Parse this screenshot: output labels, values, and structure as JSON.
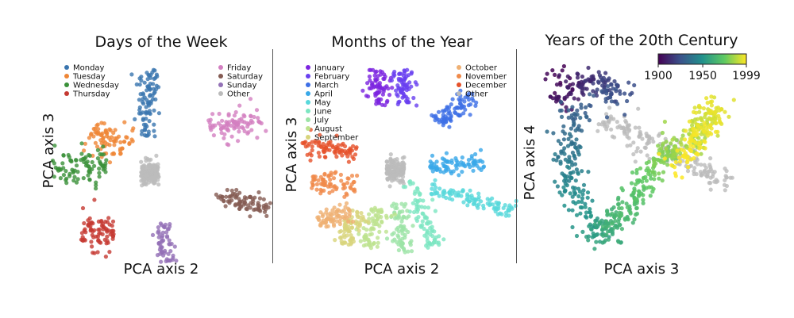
{
  "chart_data": [
    {
      "type": "scatter",
      "title": "Days of the Week",
      "xlabel": "PCA axis 2",
      "ylabel": "PCA axis 3",
      "xlim": [
        -1,
        1
      ],
      "ylim": [
        -1,
        1
      ],
      "grid": false,
      "legend_placement": "top, split in two columns",
      "series": [
        {
          "name": "Monday",
          "color": "#3a75af",
          "cluster": {
            "center": [
              -0.1,
              0.55
            ],
            "direction": [
              0.05,
              1
            ],
            "length": 0.35,
            "width": 0.06,
            "count": 90
          }
        },
        {
          "name": "Tuesday",
          "color": "#ef8636",
          "cluster": {
            "center": [
              -0.45,
              0.2
            ],
            "direction": [
              0.35,
              -0.3
            ],
            "length": 0.18,
            "width": 0.09,
            "count": 80
          }
        },
        {
          "name": "Wednesday",
          "color": "#3b913a",
          "cluster": {
            "center": [
              -0.7,
              -0.1
            ],
            "direction": [
              1,
              0.05
            ],
            "length": 0.25,
            "width": 0.09,
            "count": 90
          }
        },
        {
          "name": "Thursday",
          "color": "#c53932",
          "cluster": {
            "center": [
              -0.55,
              -0.75
            ],
            "direction": [
              1,
              0
            ],
            "length": 0.15,
            "width": 0.1,
            "count": 80
          }
        },
        {
          "name": "Friday",
          "color": "#d37fc1",
          "cluster": {
            "center": [
              0.7,
              0.35
            ],
            "direction": [
              0.8,
              0.25
            ],
            "length": 0.25,
            "width": 0.07,
            "count": 90
          }
        },
        {
          "name": "Saturday",
          "color": "#845b53",
          "cluster": {
            "center": [
              0.75,
              -0.45
            ],
            "direction": [
              1,
              -0.3
            ],
            "length": 0.25,
            "width": 0.05,
            "count": 80
          }
        },
        {
          "name": "Sunday",
          "color": "#9371b6",
          "cluster": {
            "center": [
              0.05,
              -0.85
            ],
            "direction": [
              0.15,
              -1
            ],
            "length": 0.2,
            "width": 0.04,
            "count": 60
          }
        },
        {
          "name": "Other",
          "color": "#bbbbbb",
          "cluster": {
            "center": [
              -0.08,
              -0.15
            ],
            "direction": [
              1,
              0
            ],
            "length": 0.08,
            "width": 0.06,
            "count": 140
          }
        }
      ]
    },
    {
      "type": "scatter",
      "title": "Months of the Year",
      "xlabel": "PCA axis 2",
      "ylabel": "PCA axis 3",
      "xlim": [
        -1,
        1
      ],
      "ylim": [
        -1,
        1
      ],
      "grid": false,
      "legend_placement": "top, split in two columns",
      "series": [
        {
          "name": "January",
          "color": "#7c24e0",
          "cluster": {
            "center": [
              -0.2,
              0.72
            ],
            "direction": [
              0.1,
              1
            ],
            "length": 0.18,
            "width": 0.05,
            "count": 70
          }
        },
        {
          "name": "February",
          "color": "#6940f0",
          "cluster": {
            "center": [
              0.02,
              0.72
            ],
            "direction": [
              0.05,
              1
            ],
            "length": 0.18,
            "width": 0.05,
            "count": 70
          }
        },
        {
          "name": "March",
          "color": "#3d6fe6",
          "cluster": {
            "center": [
              0.5,
              0.5
            ],
            "direction": [
              0.6,
              0.5
            ],
            "length": 0.22,
            "width": 0.05,
            "count": 80
          }
        },
        {
          "name": "April",
          "color": "#38a8e8",
          "cluster": {
            "center": [
              0.5,
              -0.05
            ],
            "direction": [
              1,
              0.05
            ],
            "length": 0.25,
            "width": 0.05,
            "count": 80
          }
        },
        {
          "name": "May",
          "color": "#58d8db",
          "cluster": {
            "center": [
              0.65,
              -0.42
            ],
            "direction": [
              1,
              -0.3
            ],
            "length": 0.4,
            "width": 0.04,
            "count": 100
          }
        },
        {
          "name": "June",
          "color": "#7ce6c2",
          "cluster": {
            "center": [
              0.2,
              -0.55
            ],
            "direction": [
              0.35,
              -1
            ],
            "length": 0.35,
            "width": 0.05,
            "count": 80
          }
        },
        {
          "name": "July",
          "color": "#9ce3a6",
          "cluster": {
            "center": [
              -0.0,
              -0.7
            ],
            "direction": [
              0.1,
              -1
            ],
            "length": 0.25,
            "width": 0.05,
            "count": 70
          }
        },
        {
          "name": "August",
          "color": "#bde28e",
          "cluster": {
            "center": [
              -0.25,
              -0.7
            ],
            "direction": [
              -0.3,
              -1
            ],
            "length": 0.2,
            "width": 0.05,
            "count": 70
          }
        },
        {
          "name": "September",
          "color": "#d8d47c",
          "cluster": {
            "center": [
              -0.45,
              -0.7
            ],
            "direction": [
              -0.5,
              -1
            ],
            "length": 0.18,
            "width": 0.05,
            "count": 70
          }
        },
        {
          "name": "October",
          "color": "#efb073",
          "cluster": {
            "center": [
              -0.6,
              -0.58
            ],
            "direction": [
              -1,
              -0.3
            ],
            "length": 0.15,
            "width": 0.05,
            "count": 70
          }
        },
        {
          "name": "November",
          "color": "#f08a4a",
          "cluster": {
            "center": [
              -0.6,
              -0.25
            ],
            "direction": [
              1,
              -0.1
            ],
            "length": 0.2,
            "width": 0.05,
            "count": 70
          }
        },
        {
          "name": "December",
          "color": "#e6512a",
          "cluster": {
            "center": [
              -0.65,
              0.1
            ],
            "direction": [
              1,
              -0.15
            ],
            "length": 0.25,
            "width": 0.05,
            "count": 80
          }
        },
        {
          "name": "Other",
          "color": "#bbbbbb",
          "cluster": {
            "center": [
              -0.05,
              -0.12
            ],
            "direction": [
              1,
              0
            ],
            "length": 0.08,
            "width": 0.06,
            "count": 140
          }
        }
      ]
    },
    {
      "type": "scatter",
      "title": "Years of the 20th Century",
      "xlabel": "PCA axis 3",
      "ylabel": "PCA axis 4",
      "xlim": [
        -1,
        1
      ],
      "ylim": [
        -1,
        1
      ],
      "grid": false,
      "colorbar": {
        "colormap": "viridis",
        "range": [
          1900,
          1999
        ],
        "ticks": [
          "1900",
          "1950",
          "1999"
        ],
        "placement": "top-right",
        "colors": [
          "#440154",
          "#3b528b",
          "#21918c",
          "#5ec962",
          "#fde725"
        ]
      },
      "series": [
        {
          "name": "",
          "color_by": "year",
          "x": [
            -0.8,
            -0.78,
            -0.65,
            -0.5,
            -0.35,
            -0.2,
            -0.7,
            -0.72,
            -0.74,
            -0.72,
            -0.68,
            -0.6,
            -0.5,
            -0.4,
            -0.3,
            -0.25,
            -0.18,
            -0.1,
            0.0,
            0.1,
            0.2,
            0.3,
            0.4,
            0.5,
            0.6,
            0.7,
            0.6,
            0.5,
            0.4,
            0.3
          ],
          "y": [
            0.85,
            0.6,
            0.85,
            0.8,
            0.75,
            0.72,
            0.5,
            0.3,
            0.1,
            -0.1,
            -0.3,
            -0.5,
            -0.7,
            -0.75,
            -0.7,
            -0.6,
            -0.5,
            -0.35,
            -0.2,
            -0.05,
            0.05,
            0.15,
            0.2,
            0.3,
            0.45,
            0.55,
            0.4,
            0.25,
            0.1,
            -0.05
          ],
          "year": [
            1900,
            1905,
            1910,
            1915,
            1920,
            1925,
            1930,
            1934,
            1938,
            1942,
            1946,
            1950,
            1954,
            1958,
            1962,
            1965,
            1968,
            1971,
            1974,
            1977,
            1980,
            1983,
            1986,
            1989,
            1992,
            1995,
            1996,
            1997,
            1998,
            1999
          ]
        },
        {
          "name": "Other",
          "color": "#bbbbbb",
          "cluster": {
            "center": [
              0.2,
              0.1
            ],
            "direction": [
              1,
              -0.55
            ],
            "length": 0.7,
            "width": 0.07,
            "count": 180
          }
        }
      ]
    }
  ]
}
